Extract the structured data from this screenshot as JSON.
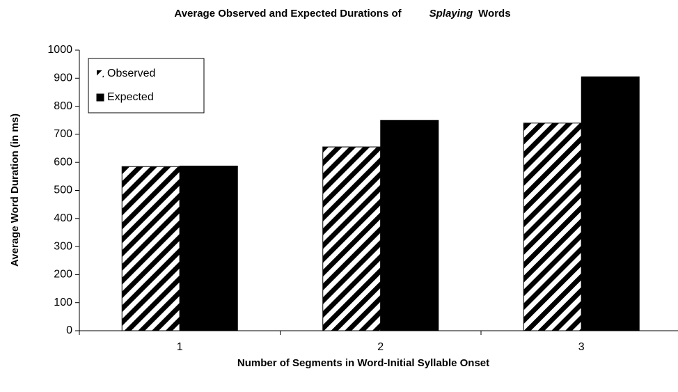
{
  "chart_data": {
    "type": "bar",
    "title": [
      "Average Observed and Expected Durations of",
      "Splaying",
      "Words"
    ],
    "title_italic": [
      false,
      true,
      false
    ],
    "x_label": "Number of Segments in Word-Initial Syllable Onset",
    "y_label": "Average Word Duration (in ms)",
    "categories": [
      "1",
      "2",
      "3"
    ],
    "series": [
      {
        "name": "Observed",
        "color": "#000000",
        "pattern": "diagonal-hatch",
        "values": [
          585,
          655,
          740
        ]
      },
      {
        "name": "Expected",
        "color": "#000000",
        "pattern": "solid",
        "values": [
          587,
          750,
          905
        ]
      }
    ],
    "ylim": [
      0,
      1000
    ],
    "yticks": [
      0,
      100,
      200,
      300,
      400,
      500,
      600,
      700,
      800,
      900,
      1000
    ],
    "grid": false,
    "legend": "upper left"
  }
}
